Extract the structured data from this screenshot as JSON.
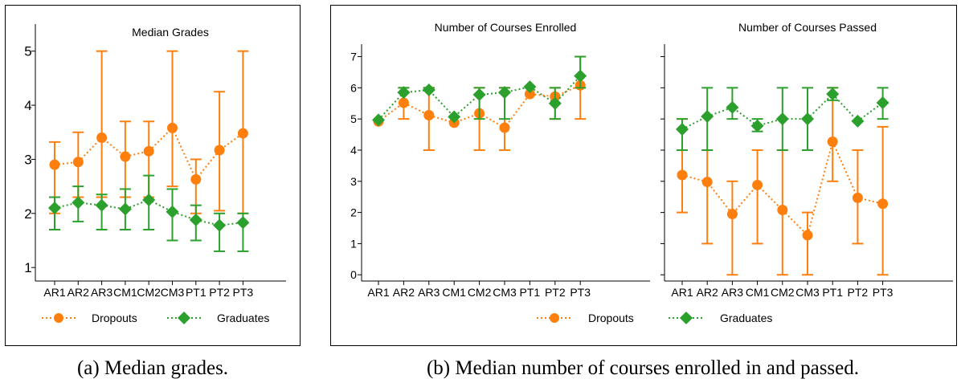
{
  "colors": {
    "dropouts": "#ff7f0e",
    "graduates": "#2ca02c",
    "frame": "#000000"
  },
  "legend": {
    "dropouts": "Dropouts",
    "graduates": "Graduates"
  },
  "captions": {
    "a": "(a) Median grades.",
    "b": "(b) Median number of courses enrolled in and passed."
  },
  "chart_data": [
    {
      "type": "line",
      "title": "Median Grades",
      "categories": [
        "AR1",
        "AR2",
        "AR3",
        "CM1",
        "CM2",
        "CM3",
        "PT1",
        "PT2",
        "PT3"
      ],
      "ylim": [
        0.75,
        5.5
      ],
      "yticks": [
        "1",
        "2",
        "3",
        "4",
        "5"
      ],
      "series": [
        {
          "name": "Dropouts",
          "values": [
            2.9,
            2.95,
            3.4,
            3.05,
            3.15,
            3.58,
            2.63,
            3.17,
            3.48
          ],
          "err_low": [
            2.0,
            2.3,
            2.3,
            2.3,
            2.3,
            2.5,
            2.0,
            2.05,
            2.0
          ],
          "err_high": [
            3.32,
            3.5,
            5.0,
            3.7,
            3.7,
            5.0,
            3.0,
            4.25,
            5.0
          ]
        },
        {
          "name": "Graduates",
          "values": [
            2.1,
            2.2,
            2.15,
            2.08,
            2.25,
            2.03,
            1.88,
            1.78,
            1.83
          ],
          "err_low": [
            1.7,
            1.85,
            1.7,
            1.7,
            1.7,
            1.5,
            1.5,
            1.3,
            1.3
          ],
          "err_high": [
            2.3,
            2.5,
            2.35,
            2.45,
            2.7,
            2.45,
            2.15,
            2.0,
            2.0
          ]
        }
      ]
    },
    {
      "type": "line",
      "title": "Number of Courses Enrolled",
      "categories": [
        "AR1",
        "AR2",
        "AR3",
        "CM1",
        "CM2",
        "CM3",
        "PT1",
        "PT2",
        "PT3"
      ],
      "ylim": [
        -0.2,
        7.4
      ],
      "yticks": [
        "0",
        "1",
        "2",
        "3",
        "4",
        "5",
        "6",
        "7"
      ],
      "series": [
        {
          "name": "Dropouts",
          "values": [
            4.92,
            5.52,
            5.12,
            4.88,
            5.18,
            4.72,
            5.8,
            5.72,
            6.08
          ],
          "err_low": [
            4.92,
            5.0,
            4.0,
            4.88,
            4.0,
            4.0,
            5.8,
            5.0,
            5.0
          ],
          "err_high": [
            4.92,
            6.0,
            6.0,
            4.88,
            6.0,
            6.0,
            5.8,
            6.0,
            7.0
          ]
        },
        {
          "name": "Graduates",
          "values": [
            4.97,
            5.85,
            5.93,
            5.07,
            5.78,
            5.85,
            6.03,
            5.5,
            6.38
          ],
          "err_low": [
            4.97,
            5.85,
            5.93,
            5.07,
            5.0,
            5.0,
            6.03,
            5.0,
            6.0
          ],
          "err_high": [
            4.97,
            6.0,
            6.0,
            5.07,
            6.0,
            6.0,
            6.03,
            6.0,
            7.0
          ]
        }
      ]
    },
    {
      "type": "line",
      "title": "Number of Courses Passed",
      "categories": [
        "AR1",
        "AR2",
        "AR3",
        "CM1",
        "CM2",
        "CM3",
        "PT1",
        "PT2",
        "PT3"
      ],
      "ylim": [
        -0.2,
        7.4
      ],
      "yticks": [],
      "series": [
        {
          "name": "Dropouts",
          "values": [
            3.2,
            2.98,
            1.95,
            2.88,
            2.08,
            1.27,
            4.27,
            2.47,
            2.28
          ],
          "err_low": [
            2.0,
            1.0,
            0.0,
            1.0,
            0.0,
            0.0,
            3.0,
            1.0,
            0.0
          ],
          "err_high": [
            5.0,
            4.0,
            3.0,
            4.0,
            4.0,
            2.0,
            6.0,
            4.0,
            4.75
          ]
        },
        {
          "name": "Graduates",
          "values": [
            4.67,
            5.08,
            5.37,
            4.78,
            5.0,
            5.0,
            5.8,
            4.93,
            5.52
          ],
          "err_low": [
            4.0,
            4.0,
            5.0,
            4.6,
            4.0,
            4.0,
            5.6,
            4.93,
            5.0
          ],
          "err_high": [
            5.0,
            6.0,
            6.0,
            5.0,
            6.0,
            6.0,
            6.0,
            4.93,
            6.0
          ]
        }
      ]
    }
  ]
}
